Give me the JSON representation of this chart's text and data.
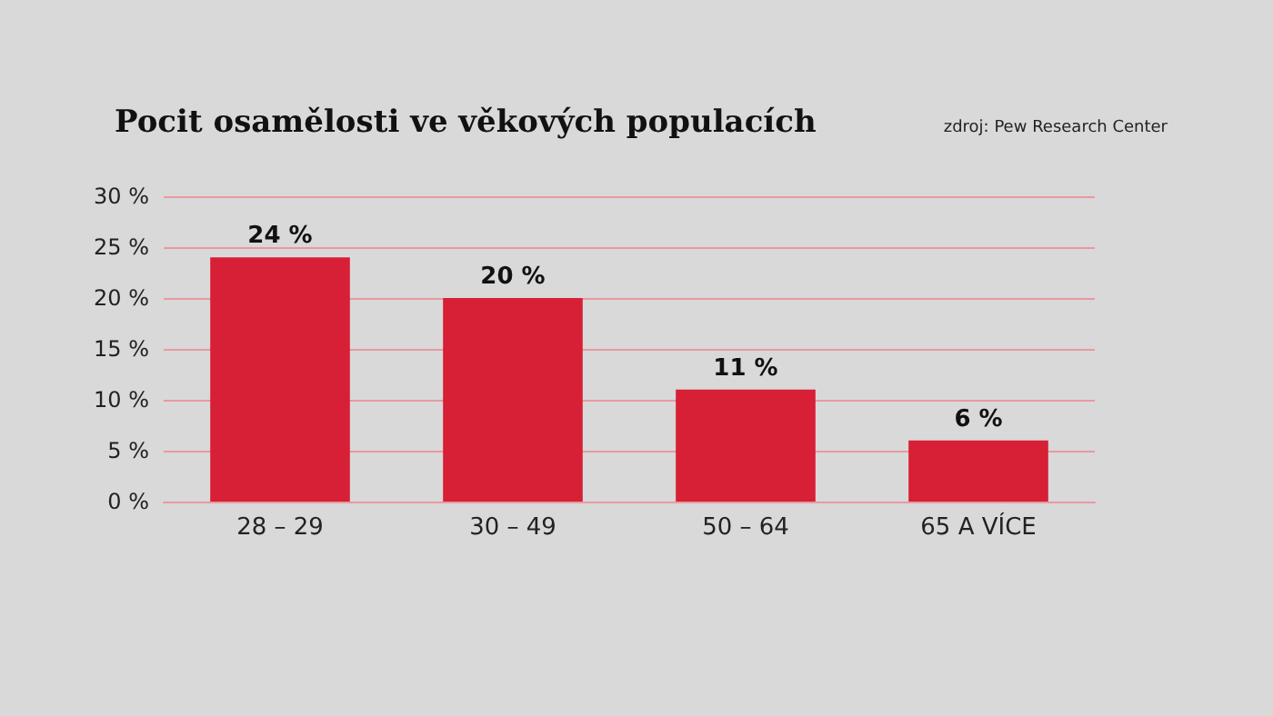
{
  "chart_data": {
    "type": "bar",
    "title": "Pocit osamělosti ve věkových populacích",
    "annotations": [
      "zdroj: Pew Research Center"
    ],
    "categories": [
      "28 – 29",
      "30 – 49",
      "50 – 64",
      "65 A VÍCE"
    ],
    "values": [
      24,
      20,
      11,
      6
    ],
    "color": "#d71f35",
    "value_labels": [
      "24 %",
      "20 %",
      "11 %",
      "6 %"
    ],
    "ylim": [
      0,
      30
    ],
    "yticks": [
      {
        "value": 0,
        "label": "0 %"
      },
      {
        "value": 5,
        "label": "5 %"
      },
      {
        "value": 10,
        "label": "10 %"
      },
      {
        "value": 15,
        "label": "15 %"
      },
      {
        "value": 20,
        "label": "20 %"
      },
      {
        "value": 25,
        "label": "25 %"
      },
      {
        "value": 30,
        "label": "30 %"
      }
    ],
    "grid": "y"
  }
}
